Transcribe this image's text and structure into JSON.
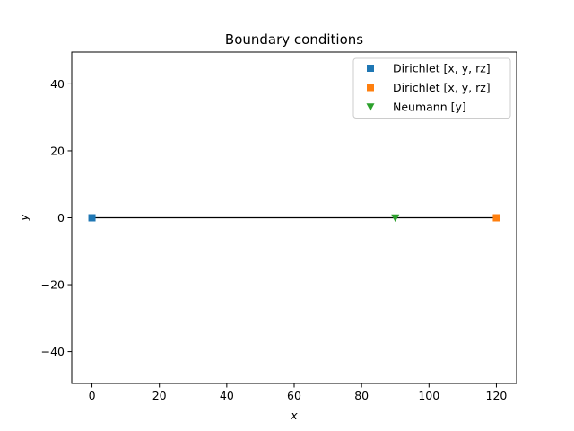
{
  "chart_data": {
    "type": "scatter",
    "title": "Boundary conditions",
    "xlabel": "x",
    "ylabel": "y",
    "xlim": [
      -6,
      126
    ],
    "ylim": [
      -49.5,
      49.5
    ],
    "xticks": [
      0,
      20,
      40,
      60,
      80,
      100,
      120
    ],
    "yticks": [
      -40,
      -20,
      0,
      20,
      40
    ],
    "xtick_labels": [
      "0",
      "20",
      "40",
      "60",
      "80",
      "100",
      "120"
    ],
    "ytick_labels": [
      "−40",
      "−20",
      "0",
      "20",
      "40"
    ],
    "grid": false,
    "legend_position": "top-right",
    "structure_line": {
      "x": [
        0,
        120
      ],
      "y": [
        0,
        0
      ],
      "color": "#000000"
    },
    "series": [
      {
        "name": "Dirichlet  [x, y, rz]",
        "marker": "square",
        "color": "#1f77b4",
        "x": [
          0
        ],
        "y": [
          0
        ]
      },
      {
        "name": "Dirichlet  [x, y, rz]",
        "marker": "square",
        "color": "#ff7f0e",
        "x": [
          120
        ],
        "y": [
          0
        ]
      },
      {
        "name": "Neumann  [y]",
        "marker": "triangle-down",
        "color": "#2ca02c",
        "x": [
          90
        ],
        "y": [
          0
        ]
      }
    ]
  }
}
